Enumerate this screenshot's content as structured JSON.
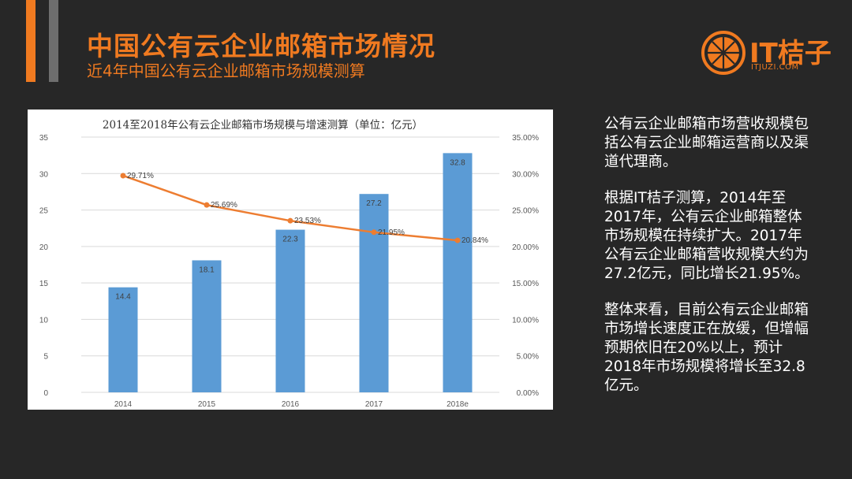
{
  "header": {
    "title": "中国公有云企业邮箱市场情况",
    "subtitle": "近4年中国公有云企业邮箱市场规模测算"
  },
  "logo": {
    "text": "IT桔子",
    "sub": "ITJUZI.COM",
    "icon": "orange-slice-icon",
    "color": "#f07a20"
  },
  "chart_data": {
    "type": "bar",
    "title": "2014至2018年公有云企业邮箱市场规模与增速测算（单位：亿元）",
    "categories": [
      "2014",
      "2015",
      "2016",
      "2017",
      "2018e"
    ],
    "series": [
      {
        "type": "bar",
        "values": [
          14.4,
          18.1,
          22.3,
          27.2,
          32.8
        ],
        "labels": [
          "14.4",
          "18.1",
          "22.3",
          "27.2",
          "32.8"
        ],
        "color": "#5b9bd5",
        "axis": "left"
      },
      {
        "type": "line",
        "values": [
          29.71,
          25.69,
          23.53,
          21.95,
          20.84
        ],
        "labels": [
          "29.71%",
          "25.69%",
          "23.53%",
          "21.95%",
          "20.84%"
        ],
        "color": "#ed7d31",
        "axis": "right"
      }
    ],
    "y_left": {
      "min": 0,
      "max": 35,
      "ticks": [
        "0",
        "5",
        "10",
        "15",
        "20",
        "25",
        "30",
        "35"
      ]
    },
    "y_right": {
      "min": 0,
      "max": 35,
      "ticks": [
        "0.00%",
        "5.00%",
        "10.00%",
        "15.00%",
        "20.00%",
        "25.00%",
        "30.00%",
        "35.00%"
      ]
    },
    "grid": true
  },
  "side_text": {
    "p1": "公有云企业邮箱市场营收规模包括公有云企业邮箱运营商以及渠道代理商。",
    "p2": "根据IT桔子测算，2014年至2017年，公有云企业邮箱整体市场规模在持续扩大。2017年公有云企业邮箱营收规模大约为27.2亿元，同比增长21.95%。",
    "p3": "整体来看，目前公有云企业邮箱市场增长速度正在放缓，但增幅预期依旧在20%以上，预计2018年市场规模将增长至32.8亿元。"
  },
  "colors": {
    "background": "#272727",
    "accent": "#f07a20",
    "accent_bar_gray": "#6e6e6e"
  }
}
